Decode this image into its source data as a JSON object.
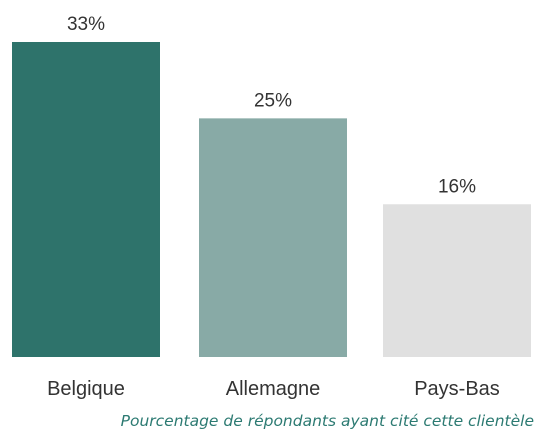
{
  "chart_data": {
    "type": "bar",
    "categories": [
      "Belgique",
      "Allemagne",
      "Pays-Bas"
    ],
    "values": [
      33,
      25,
      16
    ],
    "value_labels": [
      "33%",
      "25%",
      "16%"
    ],
    "unit": "%",
    "ylim": [
      0,
      33
    ],
    "grid": false,
    "legend": "none",
    "bar_colors": [
      "#2e736b",
      "#88aaa6",
      "#e0e0e0"
    ],
    "caption": "Pourcentage de répondants ayant cité cette clientèle"
  }
}
